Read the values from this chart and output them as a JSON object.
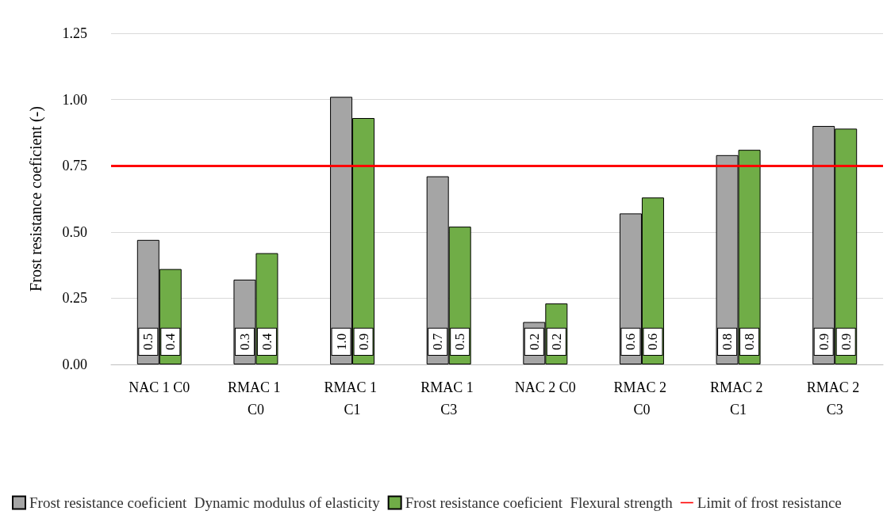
{
  "chart_data": {
    "type": "bar",
    "ylabel": "Frost resistance coeficient (-)",
    "categories": [
      "NAC 1 C0",
      "RMAC 1 C0",
      "RMAC 1 C1",
      "RMAC 1 C3",
      "NAC 2 C0",
      "RMAC 2 C0",
      "RMAC 2 C1",
      "RMAC 2 C3"
    ],
    "series": [
      {
        "name": "Frost resistance coeficient  Dynamic modulus of elasticity",
        "color": "#a5a5a5",
        "values": [
          0.47,
          0.32,
          1.01,
          0.71,
          0.16,
          0.57,
          0.79,
          0.9
        ],
        "value_labels": [
          "0.5",
          "0.3",
          "1.0",
          "0.7",
          "0.2",
          "0.6",
          "0.8",
          "0.9"
        ]
      },
      {
        "name": "Frost resistance coeficient  Flexural strength",
        "color": "#70ad47",
        "values": [
          0.36,
          0.42,
          0.93,
          0.52,
          0.23,
          0.63,
          0.81,
          0.89
        ],
        "value_labels": [
          "0.4",
          "0.4",
          "0.9",
          "0.5",
          "0.2",
          "0.6",
          "0.8",
          "0.9"
        ]
      }
    ],
    "ref_lines": [
      {
        "axis": "y",
        "value": 0.75,
        "label": "Limit of frost resistance",
        "color": "#ff0000"
      }
    ],
    "ylim": [
      0,
      1.25
    ],
    "yticks": [
      {
        "value": 0,
        "label": "0.00"
      },
      {
        "value": 0.25,
        "label": "0.25"
      },
      {
        "value": 0.5,
        "label": "0.50"
      },
      {
        "value": 0.75,
        "label": "0.75"
      },
      {
        "value": 1,
        "label": "1.00"
      },
      {
        "value": 1.25,
        "label": "1.25"
      }
    ],
    "grid": "y",
    "legend": "bottom"
  }
}
